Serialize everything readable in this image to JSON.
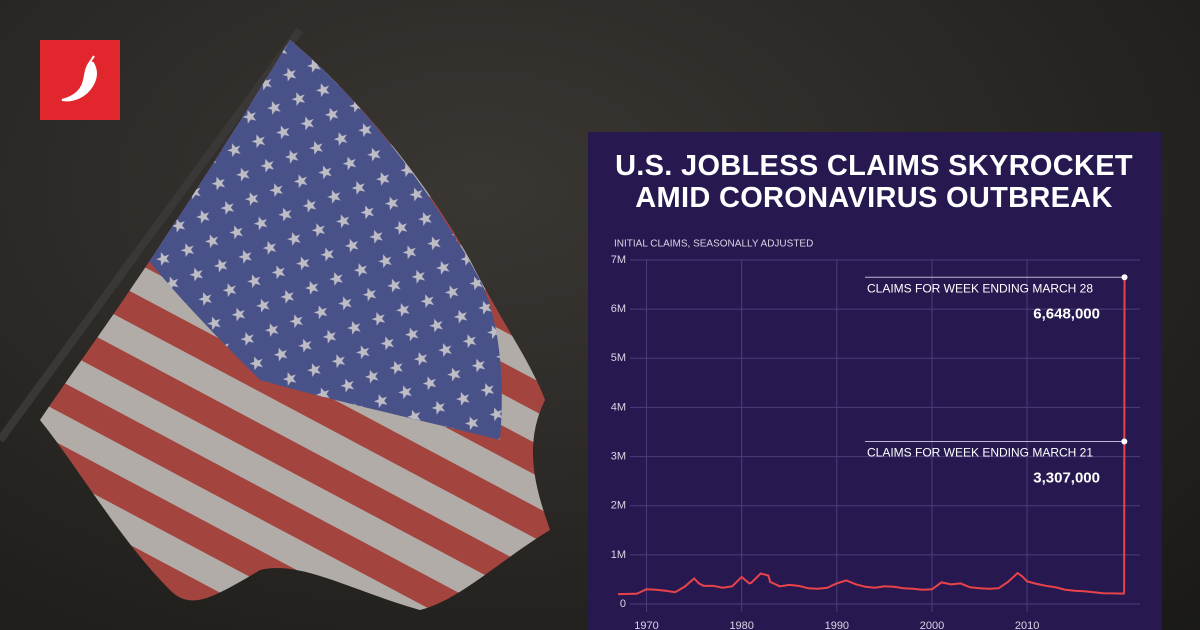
{
  "chart_data": {
    "type": "line",
    "title": "U.S. JOBLESS CLAIMS SKYROCKET AMID CORONAVIRUS OUTBREAK",
    "subtitle": "INITIAL CLAIMS, SEASONALLY ADJUSTED",
    "x": [
      1967,
      1969,
      1970,
      1971,
      1972,
      1973,
      1974,
      1975,
      1975.5,
      1976,
      1977,
      1978,
      1979,
      1980,
      1980.8,
      1981,
      1982,
      1982.8,
      1983,
      1984,
      1985,
      1986,
      1987,
      1988,
      1989,
      1990,
      1991,
      1992,
      1993,
      1994,
      1995,
      1996,
      1997,
      1998,
      1999,
      2000,
      2001,
      2002,
      2003,
      2004,
      2005,
      2006,
      2007,
      2008,
      2009,
      2009.5,
      2010,
      2011,
      2012,
      2013,
      2014,
      2015,
      2016,
      2017,
      2018,
      2019,
      2020.16,
      2020.2,
      2020.22,
      2020.24
    ],
    "series": [
      {
        "name": "Initial claims",
        "color": "#e8434a",
        "values": [
          200000,
          210000,
          300000,
          290000,
          270000,
          240000,
          350000,
          520000,
          420000,
          370000,
          370000,
          330000,
          360000,
          550000,
          420000,
          430000,
          620000,
          580000,
          450000,
          360000,
          390000,
          370000,
          320000,
          310000,
          330000,
          420000,
          480000,
          400000,
          350000,
          330000,
          360000,
          350000,
          320000,
          310000,
          290000,
          300000,
          440000,
          400000,
          420000,
          340000,
          320000,
          310000,
          320000,
          450000,
          630000,
          560000,
          460000,
          410000,
          370000,
          340000,
          290000,
          270000,
          260000,
          240000,
          220000,
          215000,
          211000,
          282000,
          3307000,
          6648000
        ],
        "value_labels": [
          null,
          null,
          null,
          null,
          null,
          null,
          null,
          null,
          null,
          null,
          null,
          null,
          null,
          null,
          null,
          null,
          null,
          null,
          null,
          null,
          null,
          null,
          null,
          null,
          null,
          null,
          null,
          null,
          null,
          null,
          null,
          null,
          null,
          null,
          null,
          null,
          null,
          null,
          null,
          null,
          null,
          null,
          null,
          null,
          null,
          null,
          null,
          null,
          null,
          null,
          null,
          null,
          null,
          null,
          null,
          null,
          null,
          null,
          "3,307,000",
          "6,648,000"
        ],
        "notes": [
          null,
          null,
          null,
          null,
          null,
          null,
          null,
          null,
          null,
          null,
          null,
          null,
          null,
          null,
          null,
          null,
          null,
          null,
          null,
          null,
          null,
          null,
          null,
          null,
          null,
          null,
          null,
          null,
          null,
          null,
          null,
          null,
          null,
          null,
          null,
          null,
          null,
          null,
          null,
          null,
          null,
          null,
          null,
          null,
          null,
          null,
          null,
          null,
          null,
          null,
          null,
          null,
          null,
          null,
          null,
          null,
          null,
          null,
          "CLAIMS FOR WEEK ENDING MARCH 21",
          "CLAIMS FOR WEEK ENDING MARCH 28"
        ]
      }
    ],
    "xlim": [
      1967,
      2020.5
    ],
    "xticks": [
      1970,
      1980,
      1990,
      2000,
      2010
    ],
    "ylim": [
      0,
      7000000
    ],
    "yticks": [
      0,
      {
        "value": 1000000,
        "label": "1M"
      },
      {
        "value": 2000000,
        "label": "2M"
      },
      {
        "value": 3000000,
        "label": "3M"
      },
      {
        "value": 4000000,
        "label": "4M"
      },
      {
        "value": 5000000,
        "label": "5M"
      },
      {
        "value": 6000000,
        "label": "6M"
      },
      {
        "value": 7000000,
        "label": "7M"
      }
    ],
    "grid": true
  }
}
